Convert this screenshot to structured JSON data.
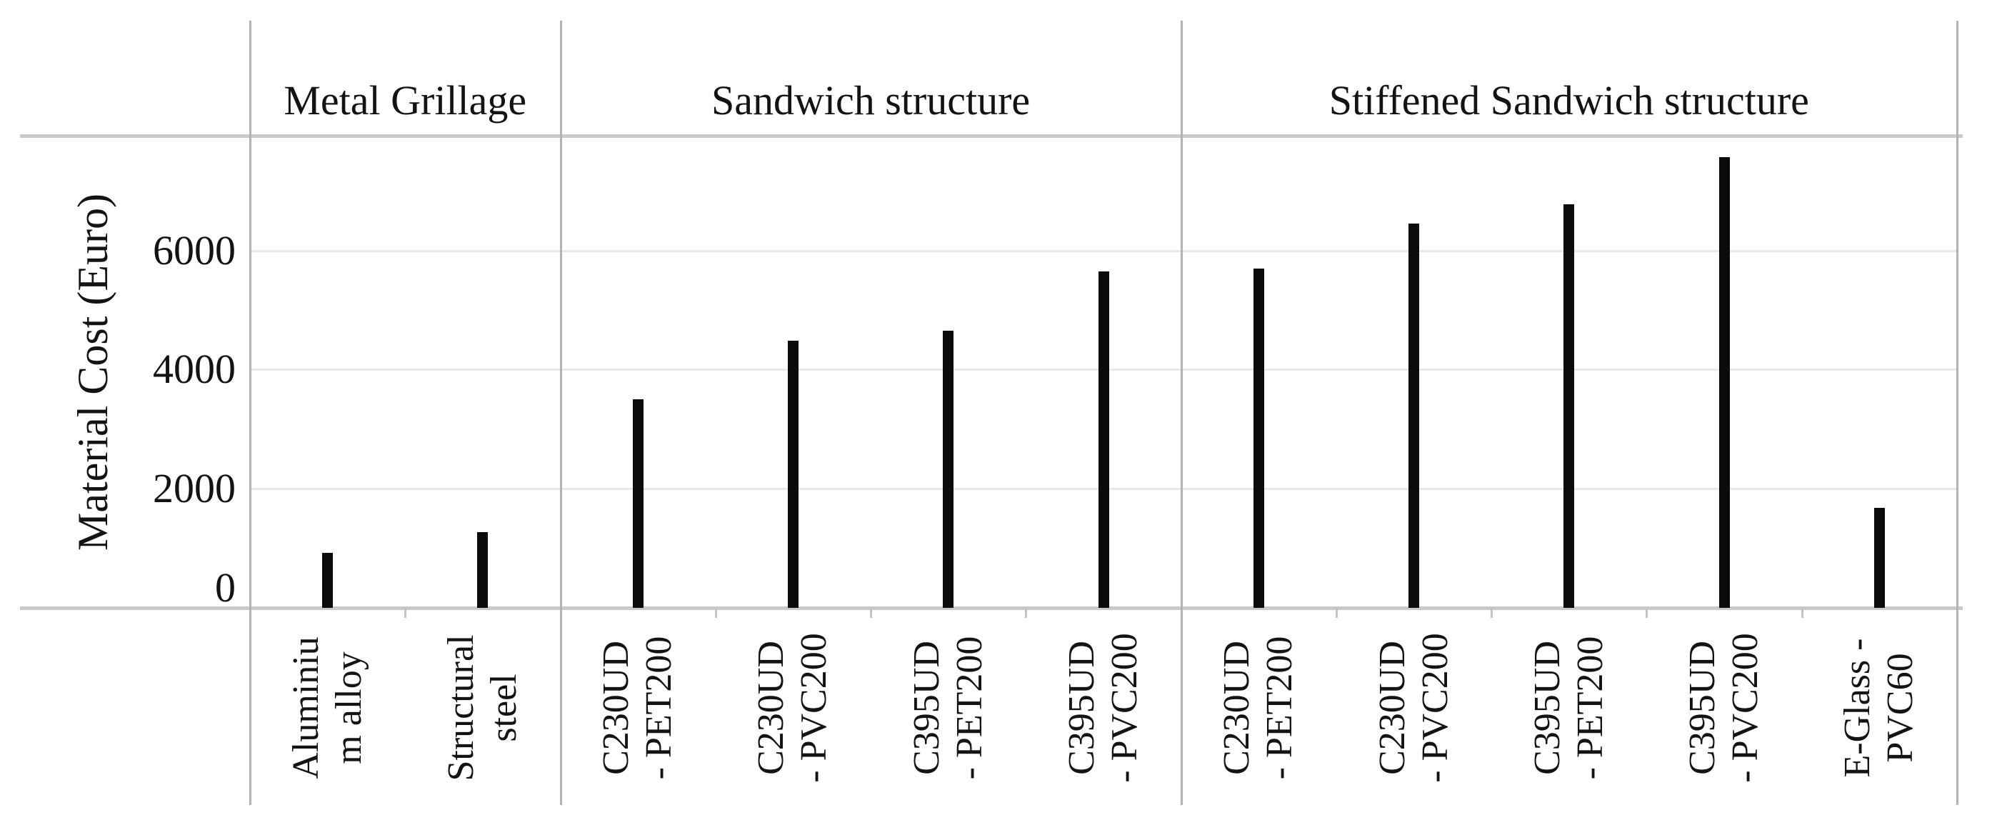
{
  "chart_data": {
    "type": "bar",
    "title": "",
    "xlabel": "",
    "ylabel": "Material Cost (Euro)",
    "y_ticks": [
      0,
      2000,
      4000,
      6000
    ],
    "ylim": [
      0,
      7925
    ],
    "grid": "horizontal",
    "legend": "none",
    "bar_color": "#0b0b0b",
    "groups": [
      {
        "label": "Metal Grillage",
        "categories": [
          {
            "label": "Aluminium alloy",
            "lines": [
              "Aluminiu",
              "m alloy"
            ],
            "value": 920
          },
          {
            "label": "Structural steel",
            "lines": [
              "Structural",
              "steel"
            ],
            "value": 1270
          }
        ]
      },
      {
        "label": "Sandwich structure",
        "categories": [
          {
            "label": "C230UD - PET200",
            "lines": [
              "C230UD",
              "- PET200"
            ],
            "value": 3500
          },
          {
            "label": "C230UD - PVC200",
            "lines": [
              "C230UD",
              "- PVC200"
            ],
            "value": 4490
          },
          {
            "label": "C395UD - PET200",
            "lines": [
              "C395UD",
              "- PET200"
            ],
            "value": 4650
          },
          {
            "label": "C395UD - PVC200",
            "lines": [
              "C395UD",
              "- PVC200"
            ],
            "value": 5650
          }
        ]
      },
      {
        "label": "Stiffened Sandwich structure",
        "categories": [
          {
            "label": "C230UD - PET200",
            "lines": [
              "C230UD",
              "- PET200"
            ],
            "value": 5700
          },
          {
            "label": "C230UD - PVC200",
            "lines": [
              "C230UD",
              "- PVC200"
            ],
            "value": 6450
          },
          {
            "label": "C395UD - PET200",
            "lines": [
              "C395UD",
              "- PET200"
            ],
            "value": 6780
          },
          {
            "label": "C395UD - PVC200",
            "lines": [
              "C395UD",
              "- PVC200"
            ],
            "value": 7560
          },
          {
            "label": "E-Glass - PVC60",
            "lines": [
              "E-Glass -",
              "PVC60"
            ],
            "value": 1680
          }
        ]
      }
    ]
  },
  "colors": {
    "background": "#ffffff",
    "text": "#131313",
    "bar": "#0b0b0b",
    "gridline": "#e9e9e9",
    "frame_line": "#c9c9c9",
    "separator_line": "#b3b3b3"
  }
}
